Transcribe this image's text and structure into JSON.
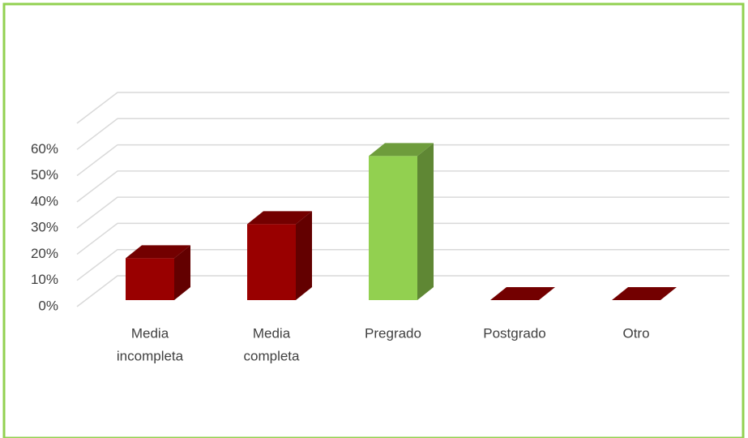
{
  "chart_data": {
    "type": "bar3d",
    "categories": [
      [
        "Media",
        "incompleta"
      ],
      [
        "Media",
        "completa"
      ],
      [
        "Pregrado"
      ],
      [
        "Postgrado"
      ],
      [
        "Otro"
      ]
    ],
    "values": [
      16,
      29,
      55,
      0,
      0
    ],
    "colors": [
      "#990000",
      "#990000",
      "#92d050",
      "#990000",
      "#990000"
    ],
    "ylim": [
      0,
      70
    ],
    "yticks": [
      {
        "value": 0,
        "label": "0%"
      },
      {
        "value": 10,
        "label": "10%"
      },
      {
        "value": 20,
        "label": "20%"
      },
      {
        "value": 30,
        "label": "30%"
      },
      {
        "value": 40,
        "label": "40%"
      },
      {
        "value": 50,
        "label": "50%"
      },
      {
        "value": 60,
        "label": "60%"
      }
    ],
    "grid": true
  }
}
